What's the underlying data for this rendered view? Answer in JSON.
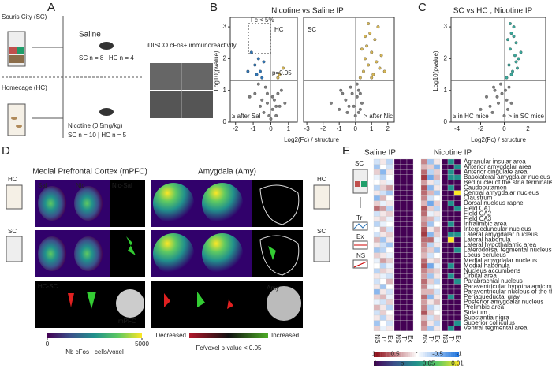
{
  "panel_a": {
    "label": "A",
    "sc": "Souris City (SC)",
    "saline": "Saline",
    "saline_n": "SC n = 8 | HC n = 4",
    "imaging": "iDISCO cFos+ immunoreactivity",
    "hc": "Homecage (HC)",
    "nicotine": "Nicotine (0.5mg/kg)",
    "nicotine_n": "SC n = 10 | HC n = 5"
  },
  "panel_b": {
    "label": "B",
    "title": "Nicotine vs Saline IP",
    "fc_note": "Fc < 5%",
    "p_note": "p=0.05",
    "ylabel": "Log10(pvalue)",
    "xlabel": "Log2(Fc) / structure",
    "yticks": [
      0,
      1,
      2,
      3
    ],
    "ylim": [
      0,
      3.3
    ],
    "threshold": 1.3,
    "plots": [
      {
        "tag": "HC",
        "left_note": "≥ after Sal",
        "xlim": [
          -2.3,
          1.5
        ],
        "xticks": [
          -2,
          -1,
          0,
          1
        ],
        "groups": [
          {
            "color": "#7f7f7f",
            "x": [
              -0.9,
              -0.6,
              -0.4,
              -0.3,
              -0.2,
              -0.1,
              0,
              0.1,
              0.2,
              0.3,
              0.4,
              0.5,
              0.6,
              -0.5,
              -0.2,
              0.1,
              0.3,
              -0.7,
              0.8,
              -1.2
            ],
            "y": [
              0.9,
              0.5,
              0.3,
              1.1,
              0.6,
              0.2,
              0.1,
              0.4,
              0.7,
              0.2,
              0.9,
              0.5,
              1.0,
              0.7,
              0.9,
              0.8,
              0.5,
              1.2,
              0.6,
              0.8
            ]
          },
          {
            "color": "#2e75b6",
            "x": [
              -1.1,
              -0.9,
              -0.8,
              -0.7,
              -0.6,
              -0.5,
              -1.3,
              -0.4
            ],
            "y": [
              2.2,
              1.8,
              1.5,
              2.0,
              1.6,
              1.4,
              1.6,
              1.9
            ]
          },
          {
            "color": "#d6b656",
            "x": [
              0.5,
              0.7,
              0.4
            ],
            "y": [
              1.5,
              1.7,
              1.4
            ]
          }
        ]
      },
      {
        "tag": "SC",
        "right_note": "> after Nic",
        "xlim": [
          -3.2,
          2.4
        ],
        "xticks": [
          -3,
          -2,
          -1,
          0,
          1,
          2
        ],
        "groups": [
          {
            "color": "#7f7f7f",
            "x": [
              -1.5,
              -1.0,
              -0.8,
              -0.5,
              -0.3,
              -0.1,
              0,
              0.1,
              0.2,
              0.3,
              -0.6,
              -0.2,
              0.4,
              0.1,
              -0.9,
              0.2,
              -0.4,
              0.3
            ],
            "y": [
              0.6,
              0.4,
              0.9,
              0.3,
              1.1,
              0.5,
              0.2,
              0.8,
              1.0,
              0.4,
              0.7,
              0.9,
              0.6,
              1.2,
              1.0,
              0.3,
              0.5,
              0.9
            ]
          },
          {
            "color": "#d6b656",
            "x": [
              0.3,
              0.5,
              0.6,
              0.7,
              0.8,
              0.9,
              1.0,
              1.1,
              1.2,
              1.3,
              1.4,
              1.5,
              0.4,
              0.8,
              1.0,
              1.6,
              0.6,
              1.8
            ],
            "y": [
              1.4,
              1.6,
              2.0,
              2.4,
              1.8,
              2.8,
              2.2,
              1.5,
              2.6,
              1.9,
              3.0,
              1.7,
              2.3,
              3.1,
              1.4,
              2.1,
              2.7,
              1.6
            ]
          }
        ]
      }
    ]
  },
  "panel_c": {
    "label": "C",
    "title": "SC vs HC , Nicotine IP",
    "ylabel": "Log10(pvalue)",
    "xlabel": "Log2(Fc) / structure",
    "left_note": "≥ in HC mice",
    "right_note": "> in SC mice",
    "xlim": [
      -4.5,
      3.5
    ],
    "xticks": [
      -4,
      -2,
      0,
      2
    ],
    "ylim": [
      0,
      3.3
    ],
    "yticks": [
      0,
      1,
      2,
      3
    ],
    "threshold": 1.3,
    "groups": [
      {
        "color": "#7f7f7f",
        "x": [
          -2.0,
          -1.5,
          -1.0,
          -0.8,
          -0.5,
          -0.3,
          0,
          0.2,
          0.4,
          -0.2,
          -1.2,
          0.3,
          -0.6,
          0.1,
          0.6,
          -0.9
        ],
        "y": [
          0.4,
          0.8,
          0.3,
          1.0,
          0.6,
          1.2,
          0.2,
          0.7,
          1.1,
          0.9,
          0.5,
          0.4,
          0.8,
          1.0,
          0.6,
          1.1
        ]
      },
      {
        "color": "#3aa89b",
        "x": [
          0.2,
          0.4,
          0.5,
          0.6,
          0.7,
          0.8,
          0.9,
          1.0,
          1.1,
          1.2,
          0.3,
          0.6,
          1.4,
          0.8,
          0.5,
          1.0
        ],
        "y": [
          1.4,
          1.8,
          2.3,
          2.8,
          1.6,
          3.0,
          2.1,
          2.5,
          1.7,
          2.0,
          2.6,
          1.5,
          2.2,
          2.7,
          3.1,
          1.9
        ]
      }
    ]
  },
  "panel_d": {
    "label": "D",
    "mpfc_title": "Medial Prefrontal Cortex (mPFC)",
    "amy_title": "Amygdala (Amy)",
    "sal": "Sal",
    "nic": "Nic",
    "diff": "Nic-Sal",
    "hc": "HC",
    "sc": "SC",
    "hc_sc": "HC-SC",
    "mpfc": "mPFC",
    "amy": "Amy",
    "colorbar": {
      "lim": [
        0,
        5000
      ],
      "ticks": [
        0,
        5000
      ],
      "label": "Nb cFos+ cells/voxel"
    },
    "decreased": "Decreased",
    "increased": "Increased",
    "p_label": "Fc/voxel p-value < 0.05"
  },
  "panel_e": {
    "label": "E",
    "saline": "Saline IP",
    "nicotine": "Nicotine IP",
    "columns": [
      "NS",
      "Tr",
      "Ex"
    ],
    "legend_sc": "SC",
    "legend": [
      "Tr",
      "Ex",
      "NS"
    ],
    "regions": [
      "Agranular insular area",
      "Anterior amygdalar area",
      "Anterior cingulate area",
      "Basolateral amygdalar nucleus",
      "Bed nuclei of the stria terminalis",
      "Caudoputamen",
      "Central amygdalar nucleus",
      "Claustrum",
      "Dorsal nucleus raphe",
      "Field CA1",
      "Field CA2",
      "Field CA3",
      "Infralimbic area",
      "Interpeduncular nucleus",
      "Lateral amygdalar nucleus",
      "Lateral habenula",
      "Lateral hypothalamic area",
      "Laterodorsal tegmental nucleus",
      "Locus ceruleus",
      "Medial amygdalar nucleus",
      "Medial habenula",
      "Nucleus accumbens",
      "Orbital area",
      "Parabrachial nucleus",
      "Paraventricular hypothalamic nucleus",
      "Paraventricular nucleus of the thalamus",
      "Periaqueductal gray",
      "Posterior amygdalar nucleus",
      "Prelimbic area",
      "Striatum",
      "Substantia nigra",
      "Superior colliculus",
      "Ventral tegmental area"
    ],
    "saline_r": [
      [
        -0.2,
        0.1,
        -0.3
      ],
      [
        -0.4,
        0,
        -0.2
      ],
      [
        0.2,
        -0.5,
        0.1
      ],
      [
        -0.1,
        -0.3,
        0
      ],
      [
        0,
        0.1,
        -0.1
      ],
      [
        -0.3,
        0.2,
        0.4
      ],
      [
        0.1,
        -0.2,
        -0.4
      ],
      [
        -0.5,
        0.3,
        0
      ],
      [
        0.2,
        -0.1,
        0.1
      ],
      [
        0.6,
        0.4,
        -0.3
      ],
      [
        -0.2,
        0.1,
        0.2
      ],
      [
        0.1,
        0.2,
        -0.1
      ],
      [
        -0.3,
        -0.1,
        0
      ],
      [
        0,
        0.3,
        -0.2
      ],
      [
        -0.2,
        0.1,
        0.2
      ],
      [
        0.3,
        -0.4,
        0.1
      ],
      [
        0.1,
        -0.2,
        -0.4
      ],
      [
        -0.4,
        -0.3,
        0
      ],
      [
        0.2,
        0.1,
        -0.1
      ],
      [
        -0.1,
        0.4,
        0.2
      ],
      [
        0,
        -0.3,
        -0.1
      ],
      [
        -0.3,
        0.2,
        0.1
      ],
      [
        0.1,
        -0.1,
        -0.2
      ],
      [
        -0.2,
        0,
        0.3
      ],
      [
        0.1,
        -0.4,
        0
      ],
      [
        -0.5,
        0.1,
        -0.2
      ],
      [
        0.2,
        0.3,
        -0.1
      ],
      [
        -0.1,
        -0.2,
        0.2
      ],
      [
        0.3,
        0.1,
        -0.3
      ],
      [
        -0.2,
        0.2,
        0
      ],
      [
        0.1,
        -0.3,
        0.1
      ],
      [
        -0.4,
        0,
        -0.2
      ],
      [
        0.2,
        -0.1,
        0.1
      ]
    ],
    "saline_p": [
      [
        1,
        1,
        1
      ],
      [
        1,
        1,
        1
      ],
      [
        1,
        1,
        1
      ],
      [
        1,
        1,
        1
      ],
      [
        1,
        1,
        1
      ],
      [
        1,
        1,
        1
      ],
      [
        1,
        1,
        1
      ],
      [
        1,
        1,
        1
      ],
      [
        1,
        1,
        1
      ],
      [
        1,
        1,
        1
      ],
      [
        1,
        1,
        1
      ],
      [
        1,
        1,
        1
      ],
      [
        1,
        1,
        1
      ],
      [
        1,
        1,
        1
      ],
      [
        1,
        1,
        1
      ],
      [
        1,
        1,
        1
      ],
      [
        1,
        1,
        1
      ],
      [
        1,
        1,
        1
      ],
      [
        1,
        1,
        1
      ],
      [
        1,
        1,
        1
      ],
      [
        1,
        1,
        1
      ],
      [
        1,
        1,
        1
      ],
      [
        1,
        1,
        1
      ],
      [
        1,
        1,
        1
      ],
      [
        1,
        1,
        1
      ],
      [
        1,
        1,
        1
      ],
      [
        1,
        1,
        1
      ],
      [
        1,
        1,
        1
      ],
      [
        1,
        1,
        1
      ],
      [
        1,
        1,
        1
      ],
      [
        1,
        1,
        1
      ],
      [
        1,
        1,
        1
      ],
      [
        1,
        1,
        1
      ]
    ],
    "nicotine_r": [
      [
        0.5,
        -0.4,
        0.1
      ],
      [
        0.3,
        0.2,
        -0.5
      ],
      [
        0.6,
        -0.3,
        0.2
      ],
      [
        0.8,
        -0.6,
        0.3
      ],
      [
        0.4,
        0.1,
        -0.2
      ],
      [
        0.7,
        -0.5,
        0.1
      ],
      [
        0.6,
        0.3,
        -0.4
      ],
      [
        0.5,
        -0.2,
        0
      ],
      [
        0.3,
        -0.6,
        0.2
      ],
      [
        0.7,
        0.2,
        -0.3
      ],
      [
        0.6,
        -0.1,
        0.1
      ],
      [
        0.4,
        0.3,
        -0.2
      ],
      [
        0.5,
        -0.4,
        0
      ],
      [
        0.7,
        0.1,
        0.3
      ],
      [
        0.8,
        -0.5,
        0.2
      ],
      [
        0.6,
        0.6,
        -0.1
      ],
      [
        0.5,
        -0.3,
        0.1
      ],
      [
        0.4,
        0.2,
        -0.4
      ],
      [
        0.3,
        -0.2,
        0
      ],
      [
        0.6,
        0.1,
        0.2
      ],
      [
        0.7,
        -0.6,
        -0.1
      ],
      [
        0.5,
        0.3,
        0.2
      ],
      [
        0.4,
        -0.4,
        0.1
      ],
      [
        0.6,
        0.2,
        -0.3
      ],
      [
        0.5,
        -0.1,
        0
      ],
      [
        0.3,
        0.3,
        -0.2
      ],
      [
        0.6,
        -0.5,
        0.1
      ],
      [
        0.4,
        0.1,
        0.3
      ],
      [
        0.5,
        -0.3,
        -0.1
      ],
      [
        0.7,
        0.2,
        0
      ],
      [
        0.3,
        -0.2,
        0.2
      ],
      [
        0.5,
        0.1,
        -0.3
      ],
      [
        0.4,
        -0.4,
        0.1
      ]
    ],
    "nicotine_p": [
      [
        1,
        0.05,
        1
      ],
      [
        1,
        1,
        0.05
      ],
      [
        1,
        0.05,
        1
      ],
      [
        1,
        0.05,
        0.05
      ],
      [
        1,
        1,
        1
      ],
      [
        1,
        0.05,
        1
      ],
      [
        1,
        1,
        0.01
      ],
      [
        1,
        1,
        1
      ],
      [
        1,
        0.05,
        1
      ],
      [
        1,
        1,
        0.05
      ],
      [
        1,
        1,
        1
      ],
      [
        1,
        1,
        1
      ],
      [
        1,
        0.05,
        1
      ],
      [
        1,
        1,
        1
      ],
      [
        1,
        0.05,
        0.05
      ],
      [
        1,
        0.01,
        1
      ],
      [
        1,
        1,
        1
      ],
      [
        1,
        1,
        0.05
      ],
      [
        1,
        1,
        1
      ],
      [
        1,
        1,
        1
      ],
      [
        1,
        0.05,
        1
      ],
      [
        1,
        1,
        1
      ],
      [
        1,
        0.05,
        1
      ],
      [
        1,
        1,
        0.05
      ],
      [
        1,
        1,
        1
      ],
      [
        1,
        1,
        1
      ],
      [
        1,
        0.05,
        1
      ],
      [
        1,
        1,
        1
      ],
      [
        1,
        1,
        1
      ],
      [
        1,
        1,
        1
      ],
      [
        1,
        1,
        1
      ],
      [
        1,
        1,
        0.05
      ],
      [
        1,
        0.05,
        1
      ]
    ],
    "r_scale": {
      "label": "r",
      "ticks": [
        1,
        0.5,
        -0.5,
        -1
      ]
    },
    "p_scale": {
      "label": "p",
      "ticks": [
        1,
        0.05,
        0.01
      ]
    }
  }
}
